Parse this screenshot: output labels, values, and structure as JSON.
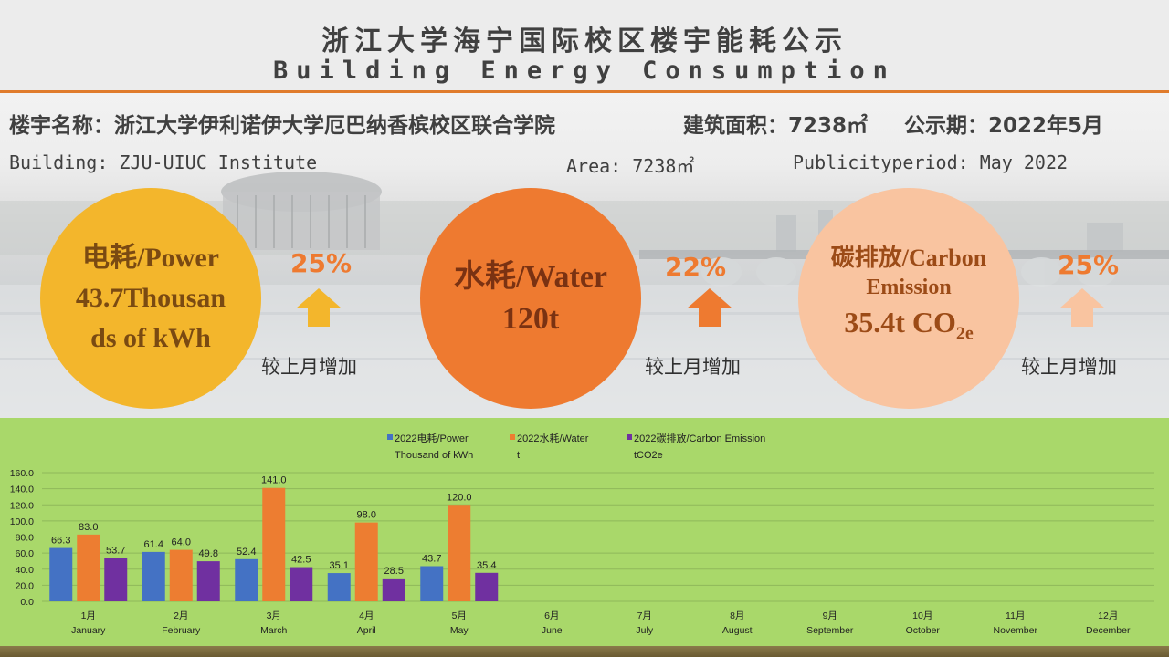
{
  "header": {
    "title_cn": "浙江大学海宁国际校区楼宇能耗公示",
    "title_en": "Building Energy Consumption"
  },
  "info": {
    "building_cn": "楼宇名称：浙江大学伊利诺伊大学厄巴纳香槟校区联合学院",
    "area_cn": "建筑面积：7238㎡",
    "period_cn": "公示期：2022年5月",
    "building_en": "Building: ZJU-UIUC Institute",
    "area_en": "Area: 7238㎡",
    "period_en": "Publicityperiod: May 2022"
  },
  "metrics": {
    "power": {
      "line1": "电耗/Power",
      "line2": "43.7Thousan",
      "line3": "ds of kWh",
      "change": "25%",
      "change_label": "较上月增加"
    },
    "water": {
      "line1": "水耗/Water",
      "line2": "120t",
      "change": "22%",
      "change_label": "较上月增加"
    },
    "carbon": {
      "line1": "碳排放/Carbon",
      "line2": "Emission",
      "line3_main": "35.4t CO",
      "line3_sub": "2e",
      "change": "25%",
      "change_label": "较上月增加"
    }
  },
  "colors": {
    "power": "#4472c4",
    "water": "#ed7d31",
    "carbon": "#7030a0",
    "accent": "#e07c2c"
  },
  "chart_data": {
    "type": "bar",
    "categories": [
      [
        "1月",
        "January"
      ],
      [
        "2月",
        "February"
      ],
      [
        "3月",
        "March"
      ],
      [
        "4月",
        "April"
      ],
      [
        "5月",
        "May"
      ],
      [
        "6月",
        "June"
      ],
      [
        "7月",
        "July"
      ],
      [
        "8月",
        "August"
      ],
      [
        "9月",
        "September"
      ],
      [
        "10月",
        "October"
      ],
      [
        "11月",
        "November"
      ],
      [
        "12月",
        "December"
      ]
    ],
    "series": [
      {
        "name": [
          "2022电耗/Power",
          "Thousand of kWh"
        ],
        "color": "#4472c4",
        "values": [
          66.3,
          61.4,
          52.4,
          35.1,
          43.7,
          null,
          null,
          null,
          null,
          null,
          null,
          null
        ]
      },
      {
        "name": [
          "2022水耗/Water",
          "t"
        ],
        "color": "#ed7d31",
        "values": [
          83.0,
          64.0,
          141.0,
          98.0,
          120.0,
          null,
          null,
          null,
          null,
          null,
          null,
          null
        ]
      },
      {
        "name": [
          "2022碳排放/Carbon Emission",
          "tCO2e"
        ],
        "color": "#7030a0",
        "values": [
          53.7,
          49.8,
          42.5,
          28.5,
          35.4,
          null,
          null,
          null,
          null,
          null,
          null,
          null
        ]
      }
    ],
    "ylim": [
      0,
      160
    ],
    "yticks": [
      "0.0",
      "20.0",
      "40.0",
      "60.0",
      "80.0",
      "100.0",
      "120.0",
      "140.0",
      "160.0"
    ],
    "grid": true,
    "legend": "top"
  }
}
